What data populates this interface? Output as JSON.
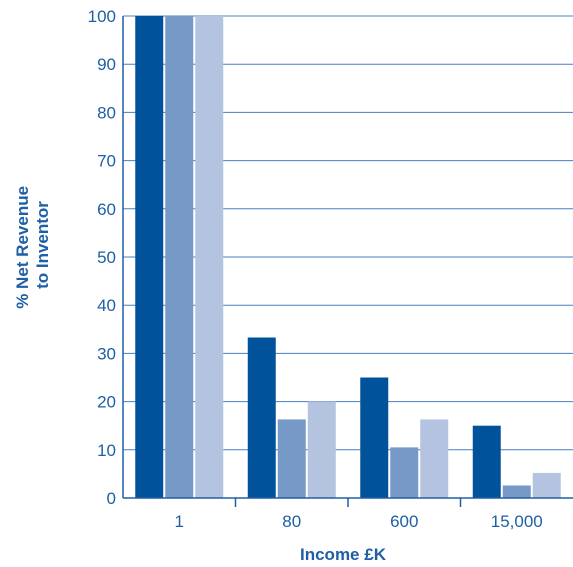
{
  "chart_data": {
    "type": "bar",
    "title": "",
    "xlabel": "Income £K",
    "ylabel_lines": [
      "% Net Revenue",
      "to Inventor"
    ],
    "categories": [
      "1",
      "80",
      "600",
      "15,000"
    ],
    "series": [
      {
        "values": [
          100,
          33.3,
          25,
          15
        ],
        "color": "#00539b"
      },
      {
        "values": [
          100,
          16.3,
          10.5,
          2.6
        ],
        "color": "#7699c8"
      },
      {
        "values": [
          100,
          20,
          16.3,
          5.2
        ],
        "color": "#b4c3e0"
      }
    ],
    "ylim": [
      0,
      100
    ],
    "yticks": [
      0,
      10,
      20,
      30,
      40,
      50,
      60,
      70,
      80,
      90,
      100
    ],
    "grid": true,
    "colors": {
      "axis": "#1f5fa6",
      "grid": "#4a7fc0",
      "text": "#1f5fa6"
    }
  }
}
